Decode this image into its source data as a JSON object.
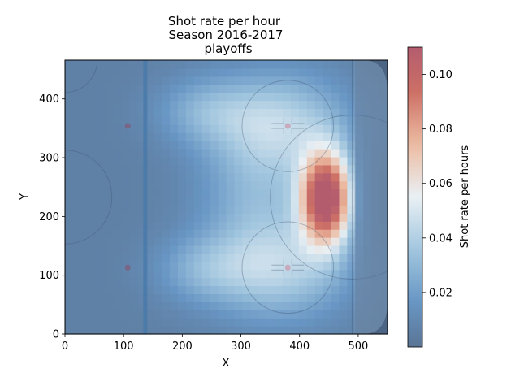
{
  "chart_data": {
    "type": "heatmap",
    "title_lines": [
      "Shot rate per hour",
      "Season 2016-2017",
      "playoffs"
    ],
    "xlabel": "X",
    "ylabel": "Y",
    "xlim": [
      0,
      550
    ],
    "ylim": [
      0,
      466
    ],
    "x_ticks": [
      0,
      100,
      200,
      300,
      400,
      500
    ],
    "y_ticks": [
      0,
      100,
      200,
      300,
      400
    ],
    "colorbar": {
      "label": "Shot rate per hours",
      "range": [
        0.0,
        0.11
      ],
      "ticks": [
        0.02,
        0.04,
        0.06,
        0.08,
        0.1
      ],
      "tick_labels": [
        "0.02",
        "0.04",
        "0.06",
        "0.08",
        "0.10"
      ],
      "colormap": "RdBu_r",
      "low_color": "#5b7595",
      "high_color": "#b35c6e"
    },
    "rink": {
      "center_circle_x": 0,
      "center_circle_y": 233,
      "center_circle_r": 80,
      "blue_line_x": 137,
      "neutral_dots": [
        [
          107,
          113
        ],
        [
          107,
          354
        ]
      ],
      "faceoff_circles": [
        [
          380,
          113
        ],
        [
          380,
          354
        ]
      ],
      "faceoff_circle_r": 78,
      "goal_line_x": 490,
      "goal_x": 490,
      "goal_y": 233
    },
    "hotspots": [
      {
        "x": 445,
        "y": 232,
        "peak": 0.11,
        "sx": 30,
        "sy": 55
      },
      {
        "x": 370,
        "y": 360,
        "peak": 0.032,
        "sx": 80,
        "sy": 60
      },
      {
        "x": 370,
        "y": 110,
        "peak": 0.03,
        "sx": 80,
        "sy": 60
      },
      {
        "x": 240,
        "y": 380,
        "peak": 0.018,
        "sx": 60,
        "sy": 40
      },
      {
        "x": 240,
        "y": 110,
        "peak": 0.018,
        "sx": 60,
        "sy": 40
      },
      {
        "x": 330,
        "y": 233,
        "peak": 0.02,
        "sx": 70,
        "sy": 90
      }
    ],
    "base_rate": 0.006
  }
}
